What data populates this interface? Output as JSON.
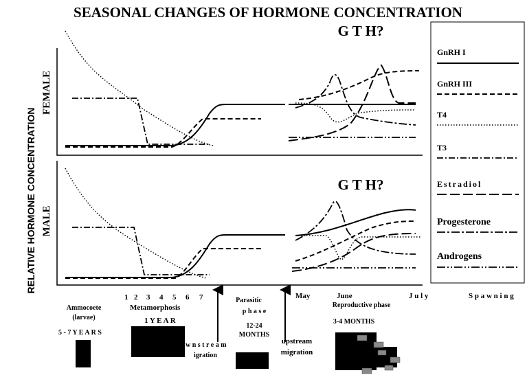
{
  "title": "SEASONAL CHANGES OF HORMONE CONCENTRATION",
  "y_axis_label": "RELATIVE HORMONE CONCENTRATION",
  "panels": [
    {
      "label": "FEMALE",
      "annotation": "G T H?"
    },
    {
      "label": "MALE",
      "annotation": "G T H?"
    }
  ],
  "legend": [
    "GnRH I",
    "GnRH III",
    "T4",
    "T3",
    "Estradiol",
    "Progesterone",
    "Androgens"
  ],
  "timeline": {
    "metamorphosis_numbers": [
      "1",
      "2",
      "3",
      "4",
      "5",
      "6",
      "7"
    ],
    "metamorphosis": "Metamorphosis",
    "ammocoete": "Ammocoete",
    "larvae": "(larvae)",
    "larval_duration": "5 - 7  Y E A R S",
    "metamorphosis_duration": "1  Y E A R",
    "downstream_1": "w n s t r e a m",
    "downstream_2": "igration",
    "parasitic_1": "Parasitic",
    "parasitic_2": "p h a s e",
    "parasitic_duration_1": "12-24",
    "parasitic_duration_2": "MONTHS",
    "upstream_1": "upstream",
    "upstream_2": "migration",
    "months": [
      "May",
      "June",
      "J u l y"
    ],
    "spawning": "S p a w n i n g",
    "reproductive": "Reproductive phase",
    "reproductive_duration": "3-4 MONTHS"
  }
}
